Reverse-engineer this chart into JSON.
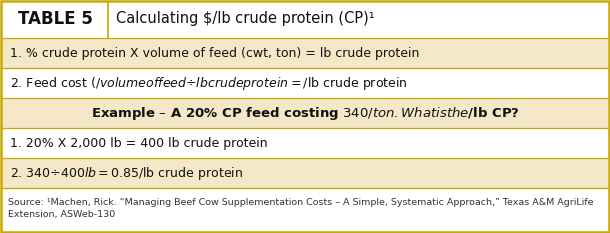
{
  "title_label": "TABLE 5",
  "title_text": "Calculating $/lb crude protein (CP)¹",
  "row1_text": "1. % crude protein X volume of feed (cwt, ton) = lb crude protein",
  "row2_text": "2. Feed cost ($/volume of feed ÷ lb crude protein = $/lb crude protein",
  "example_text": "Example – A 20% CP feed costing $340/ton. What is the $/lb CP?",
  "row3_text": "1. 20% X 2,000 lb = 400 lb crude protein",
  "row4_text": "2. $340 ÷ 400 lb = $0.85/lb crude protein",
  "source_line1": "Source: ¹Machen, Rick. “Managing Beef Cow Supplementation Costs – A Simple, Systematic Approach,” Texas A&M AgriLife",
  "source_line2": "Extension, ASWeb-130",
  "row_odd_bg": "#f5e8c8",
  "row_even_bg": "#ffffff",
  "border_color": "#c8a800",
  "divider_color": "#c8a800",
  "source_bg": "#ffffff",
  "header_bg": "#ffffff",
  "fig_width": 6.1,
  "fig_height": 2.33,
  "dpi": 100
}
